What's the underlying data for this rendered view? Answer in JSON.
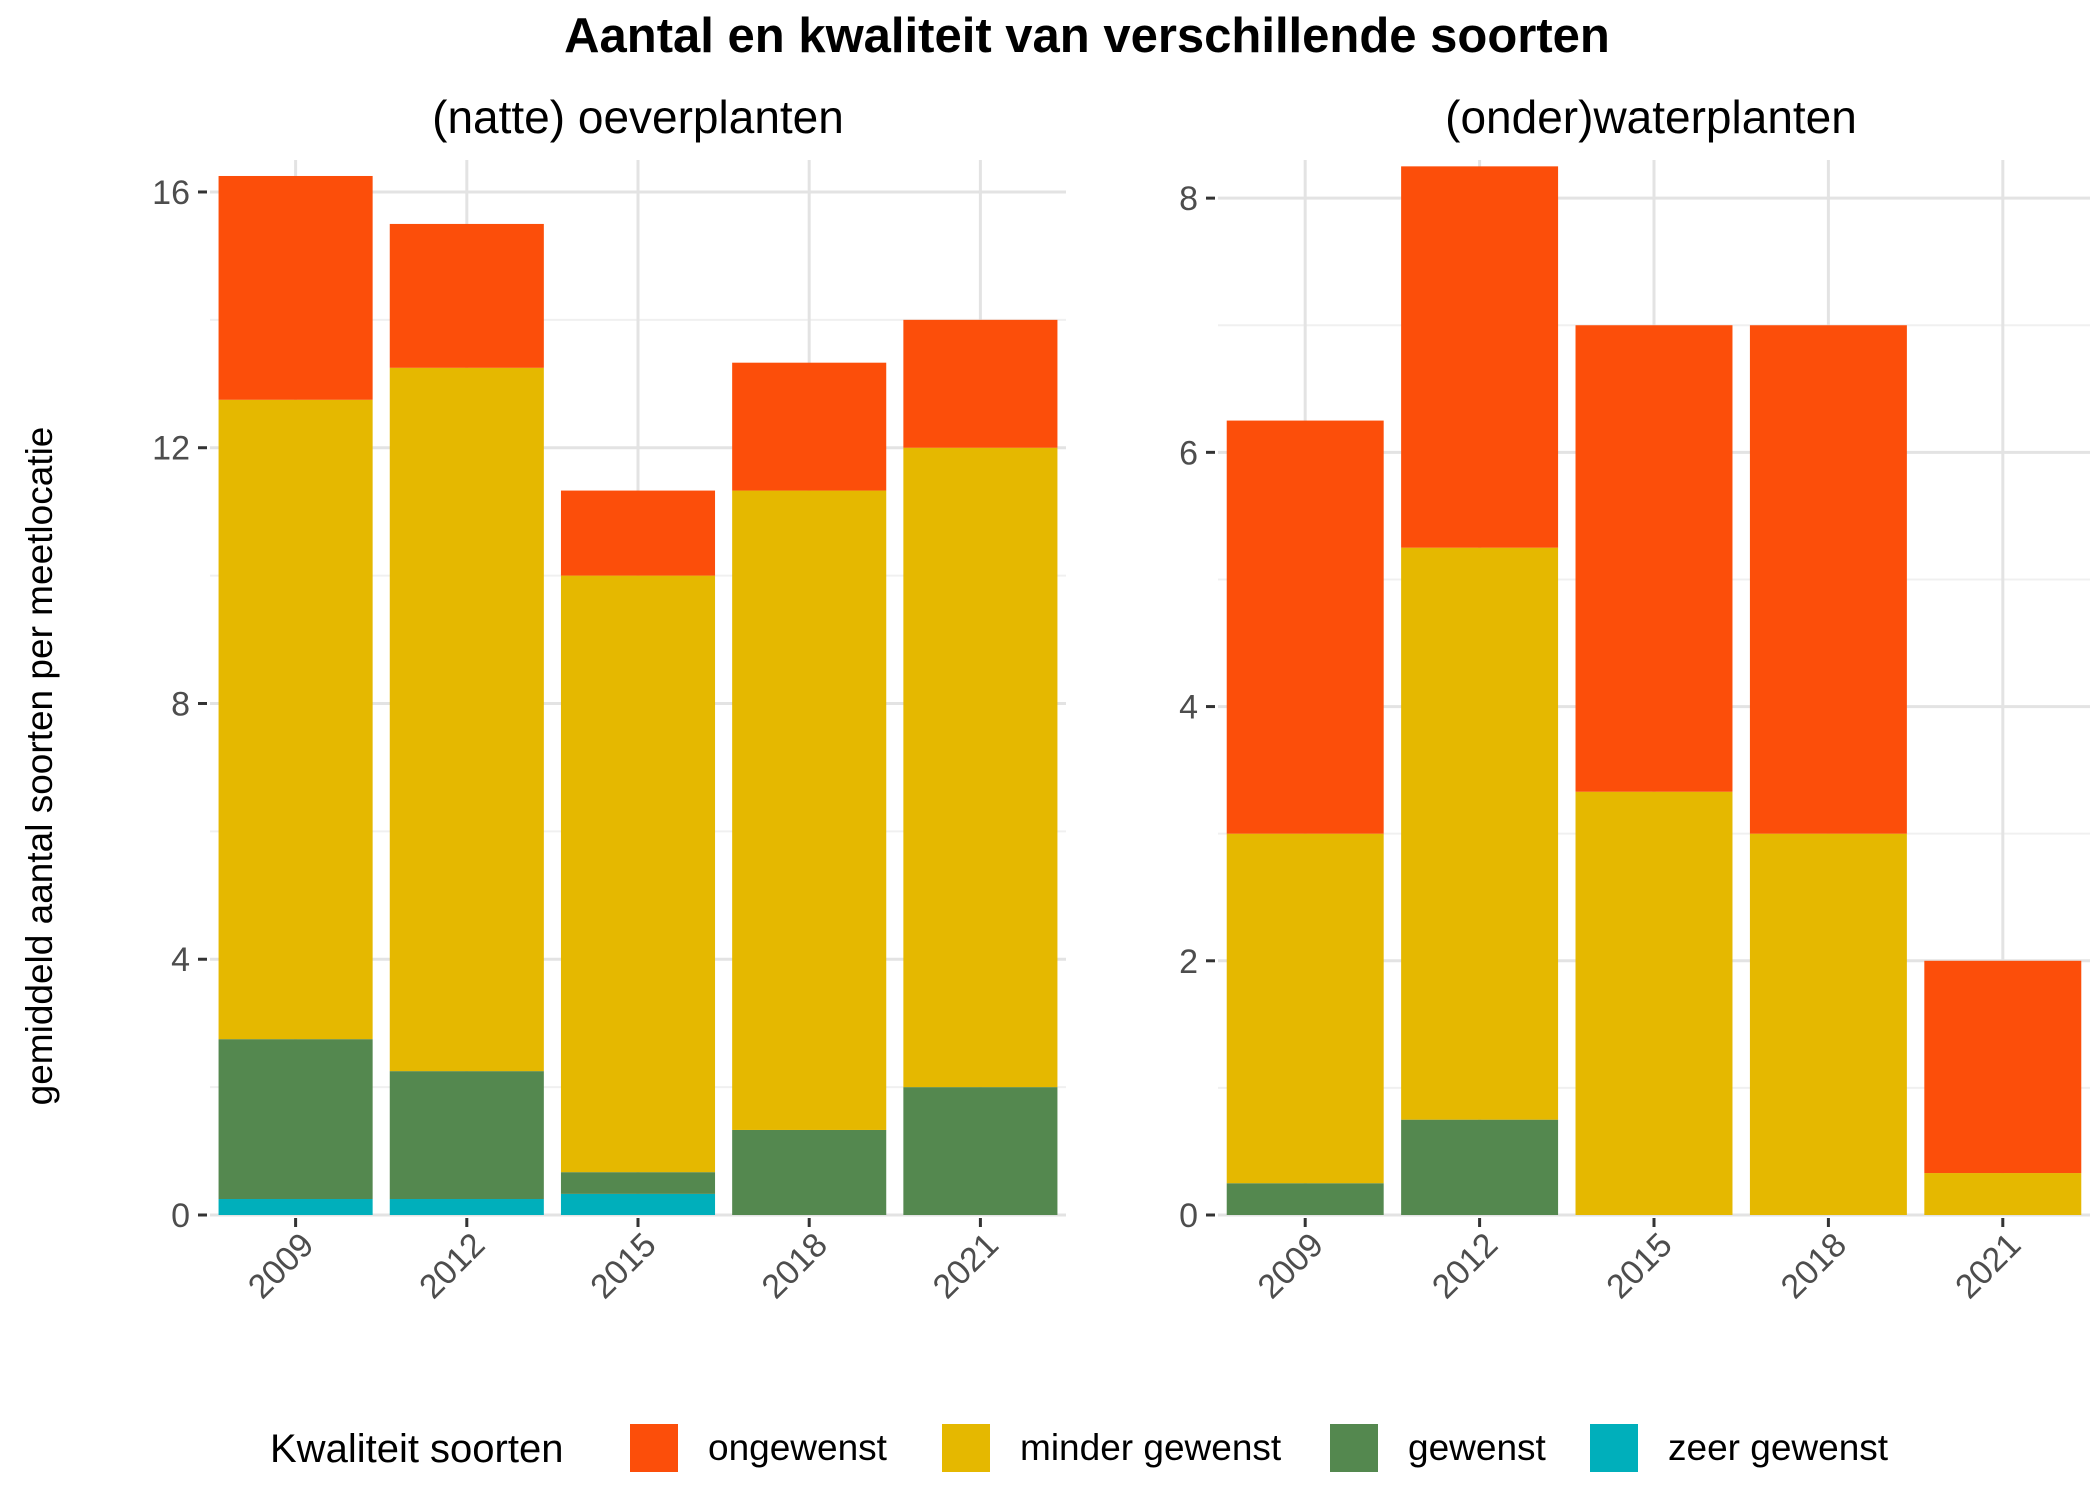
{
  "chart_data": {
    "type": "bar",
    "stacked": true,
    "title": "Aantal en kwaliteit van verschillende soorten",
    "ylabel": "gemiddeld aantal soorten per meetlocatie",
    "categories": [
      "2009",
      "2012",
      "2015",
      "2018",
      "2021"
    ],
    "legend": {
      "title": "Kwaliteit soorten",
      "position": "bottom",
      "entries": [
        {
          "name": "ongewenst",
          "color": "#FC4E0A"
        },
        {
          "name": "minder gewenst",
          "color": "#E5B800"
        },
        {
          "name": "gewenst",
          "color": "#54884F"
        },
        {
          "name": "zeer gewenst",
          "color": "#00AFBB"
        }
      ]
    },
    "grid": true,
    "panels": [
      {
        "title": "(natte) oeverplanten",
        "ylim": [
          0,
          16.5
        ],
        "yticks": [
          0,
          4,
          8,
          12,
          16
        ],
        "series": [
          {
            "name": "zeer gewenst",
            "color": "#00AFBB",
            "values": [
              0.25,
              0.25,
              0.33,
              0,
              0
            ]
          },
          {
            "name": "gewenst",
            "color": "#54884F",
            "values": [
              2.5,
              2.0,
              0.34,
              1.33,
              2.0
            ]
          },
          {
            "name": "minder gewenst",
            "color": "#E5B800",
            "values": [
              10.0,
              11.0,
              9.33,
              10.0,
              10.0
            ]
          },
          {
            "name": "ongewenst",
            "color": "#FC4E0A",
            "values": [
              3.5,
              2.25,
              1.33,
              2.0,
              2.0
            ]
          }
        ]
      },
      {
        "title": "(onder)waterplanten",
        "ylim": [
          0,
          8.3
        ],
        "yticks": [
          0,
          2,
          4,
          6,
          8
        ],
        "series": [
          {
            "name": "zeer gewenst",
            "color": "#00AFBB",
            "values": [
              0,
              0,
              0,
              0,
              0
            ]
          },
          {
            "name": "gewenst",
            "color": "#54884F",
            "values": [
              0.25,
              0.75,
              0,
              0,
              0
            ]
          },
          {
            "name": "minder gewenst",
            "color": "#E5B800",
            "values": [
              2.75,
              4.5,
              3.33,
              3.0,
              0.33
            ]
          },
          {
            "name": "ongewenst",
            "color": "#FC4E0A",
            "values": [
              3.25,
              3.0,
              3.67,
              4.0,
              1.67
            ]
          }
        ]
      }
    ]
  }
}
